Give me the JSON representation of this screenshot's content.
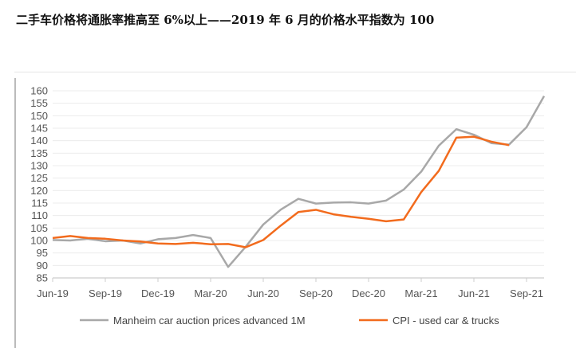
{
  "title": "二手车价格将通胀率推高至 6%以上——2019 年 6 月的价格水平指数为 100",
  "chart_data": {
    "type": "line",
    "title": "二手车价格将通胀率推高至 6%以上——2019 年 6 月的价格水平指数为 100",
    "xlabel": "",
    "ylabel": "",
    "ylim": [
      85,
      160
    ],
    "yticks": [
      85,
      90,
      95,
      100,
      105,
      110,
      115,
      120,
      125,
      130,
      135,
      140,
      145,
      150,
      155,
      160
    ],
    "xtick_labels": [
      "Jun-19",
      "Sep-19",
      "Dec-19",
      "Mar-20",
      "Jun-20",
      "Sep-20",
      "Dec-20",
      "Mar-21",
      "Jun-21",
      "Sep-21"
    ],
    "x_start": "Jun-19",
    "x_frequency": "monthly",
    "grid": true,
    "legend_position": "bottom",
    "series": [
      {
        "name": "Manheim car auction prices advanced 1M",
        "color": "#a8a8a8",
        "values": [
          100.2,
          100,
          100.7,
          99.7,
          100,
          98.8,
          100.5,
          101,
          102.2,
          101,
          89.4,
          97.5,
          106.4,
          112.4,
          116.7,
          114.8,
          115.2,
          115.3,
          114.8,
          116,
          120.4,
          127.6,
          138,
          144.6,
          142.4,
          139,
          138.4,
          145.4,
          157.9
        ]
      },
      {
        "name": "CPI - used car & trucks",
        "color": "#f26b1d",
        "values": [
          101,
          101.8,
          101,
          100.7,
          100,
          99.6,
          98.8,
          98.6,
          99.1,
          98.5,
          98.6,
          97.3,
          100.2,
          106,
          111.4,
          112.3,
          110.5,
          109.5,
          108.7,
          107.7,
          108.4,
          119.4,
          127.9,
          141.2,
          141.6,
          139.6,
          138.2
        ]
      }
    ]
  }
}
